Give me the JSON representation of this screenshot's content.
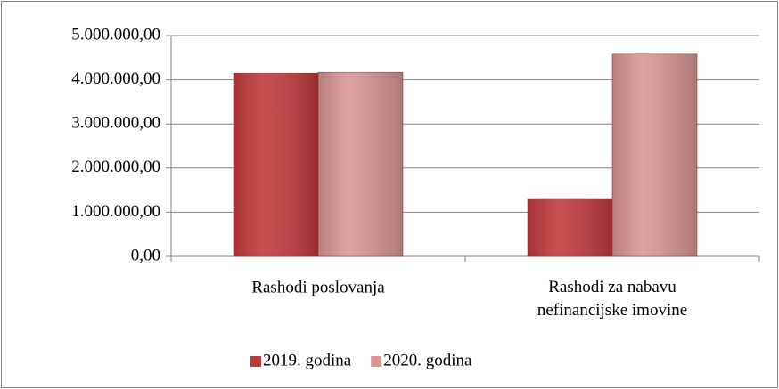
{
  "chart_data": {
    "type": "bar",
    "categories": [
      "Rashodi poslovanja",
      "Rashodi za nabavu nefinancijske imovine"
    ],
    "series": [
      {
        "name": "2019. godina",
        "color": "#c0393b",
        "values": [
          4150000,
          1310000
        ]
      },
      {
        "name": "2020. godina",
        "color": "#d99594",
        "values": [
          4170000,
          4580000
        ]
      }
    ],
    "ylim": [
      0,
      5000000
    ],
    "yticks": [
      {
        "value": 0,
        "label": "0,00"
      },
      {
        "value": 1000000,
        "label": "1.000.000,00"
      },
      {
        "value": 2000000,
        "label": "2.000.000,00"
      },
      {
        "value": 3000000,
        "label": "3.000.000,00"
      },
      {
        "value": 4000000,
        "label": "4.000.000,00"
      },
      {
        "value": 5000000,
        "label": "5.000.000,00"
      }
    ],
    "grid": true,
    "legend": "bottom"
  }
}
